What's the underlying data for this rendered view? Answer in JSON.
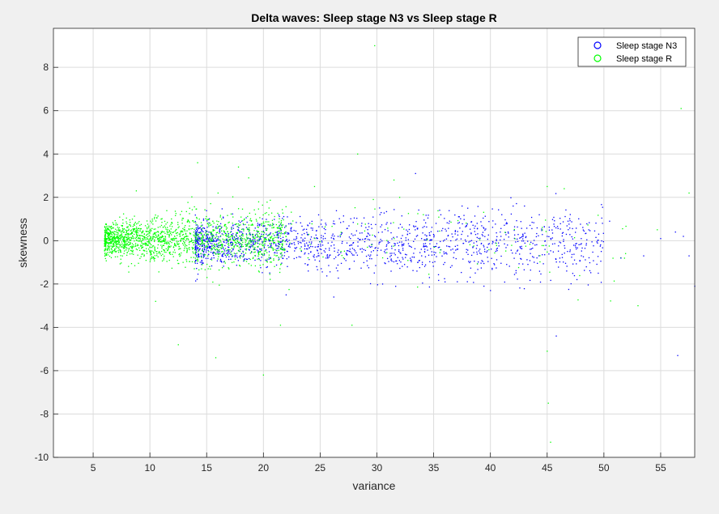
{
  "chart_data": {
    "type": "scatter",
    "title": "Delta waves: Sleep stage N3 vs Sleep stage R",
    "xlabel": "variance",
    "ylabel": "skewness",
    "xlim": [
      1.5,
      58
    ],
    "ylim": [
      -10,
      9.8
    ],
    "xticks": [
      5,
      10,
      15,
      20,
      25,
      30,
      35,
      40,
      45,
      50,
      55
    ],
    "yticks": [
      -10,
      -8,
      -6,
      -4,
      -2,
      0,
      2,
      4,
      6,
      8
    ],
    "grid": true,
    "legend_position": "top-right",
    "series": [
      {
        "name": "Sleep stage N3",
        "color": "#0000ff",
        "points": [
          [
            33.4,
            3.1
          ],
          [
            37.5,
            1.6
          ],
          [
            38.0,
            1.5
          ],
          [
            41.0,
            1.2
          ],
          [
            42.0,
            1.6
          ],
          [
            43.0,
            1.6
          ],
          [
            45.8,
            -4.4
          ],
          [
            50.5,
            0.9
          ],
          [
            56.3,
            0.4
          ],
          [
            57.5,
            -0.7
          ],
          [
            58.0,
            -2.1
          ],
          [
            56.5,
            -5.3
          ],
          [
            40.0,
            -2.3
          ],
          [
            36.0,
            -1.9
          ],
          [
            26.2,
            -2.6
          ],
          [
            22.0,
            -2.5
          ],
          [
            30.5,
            -2.0
          ],
          [
            35.5,
            -0.3
          ],
          [
            39.5,
            -0.5
          ],
          [
            43.5,
            -0.4
          ],
          [
            47.0,
            -0.5
          ],
          [
            49.5,
            -1.5
          ],
          [
            51.5,
            -0.8
          ],
          [
            53.5,
            -0.7
          ],
          [
            55.0,
            0.1
          ],
          [
            57.0,
            0.2
          ],
          [
            48.0,
            0.1
          ],
          [
            45.0,
            0.2
          ],
          [
            41.5,
            -0.2
          ],
          [
            34.0,
            -1.0
          ]
        ]
      },
      {
        "name": "Sleep stage R",
        "color": "#00ff00",
        "points": [
          [
            29.8,
            9.0
          ],
          [
            56.8,
            6.1
          ],
          [
            28.3,
            4.0
          ],
          [
            14.2,
            3.6
          ],
          [
            17.8,
            3.4
          ],
          [
            18.7,
            2.9
          ],
          [
            31.5,
            2.8
          ],
          [
            45.0,
            2.5
          ],
          [
            46.5,
            2.4
          ],
          [
            57.5,
            2.2
          ],
          [
            12.5,
            -4.8
          ],
          [
            15.8,
            -5.4
          ],
          [
            20.0,
            -6.2
          ],
          [
            45.1,
            -7.5
          ],
          [
            45.3,
            -9.3
          ],
          [
            45.0,
            -5.1
          ],
          [
            21.5,
            -3.9
          ],
          [
            27.8,
            -3.9
          ],
          [
            10.5,
            -2.8
          ],
          [
            53.0,
            -3.0
          ],
          [
            8.8,
            2.3
          ],
          [
            24.5,
            2.5
          ],
          [
            32.0,
            2.0
          ],
          [
            16.0,
            2.2
          ]
        ]
      }
    ]
  }
}
